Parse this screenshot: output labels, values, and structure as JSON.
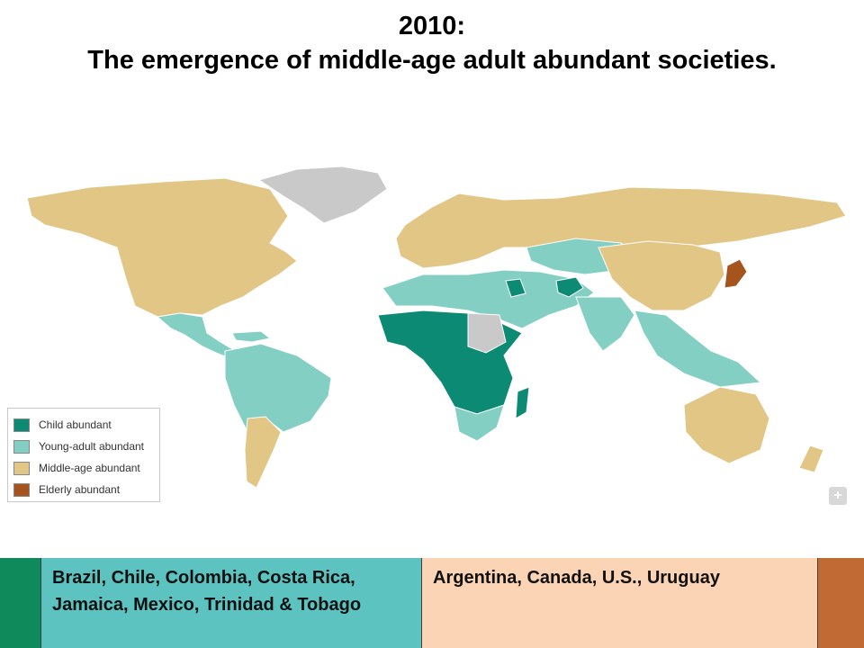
{
  "title": {
    "line1": "2010:",
    "line2": "The emergence of middle-age adult abundant societies."
  },
  "colors": {
    "child": "#0d8a74",
    "young": "#84cfc3",
    "middle": "#e2c685",
    "elderly": "#a6541d",
    "no_data": "#c9c9c9",
    "ocean": "#ffffff",
    "band_left_accent": "#0f8a5a",
    "band_young": "#5dc3c0",
    "band_middle": "#fbd3b5",
    "band_right_accent": "#c26a34"
  },
  "legend": {
    "items": [
      {
        "label": "Child abundant",
        "color_key": "child"
      },
      {
        "label": "Young-adult abundant",
        "color_key": "young"
      },
      {
        "label": "Middle-age abundant",
        "color_key": "middle"
      },
      {
        "label": "Elderly abundant",
        "color_key": "elderly"
      }
    ]
  },
  "map_controls": {
    "zoom_icon": "zoom-reset-icon"
  },
  "bottom_band": {
    "young_countries": "Brazil, Chile, Colombia, Costa Rica, Jamaica, Mexico, Trinidad & Tobago",
    "middle_countries": "Argentina, Canada, U.S., Uruguay"
  }
}
